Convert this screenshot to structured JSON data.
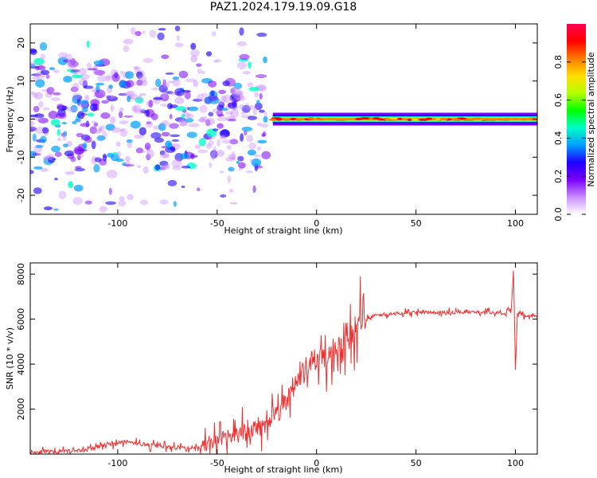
{
  "title": "PAZ1.2024.179.19.09.G18",
  "chart_data": [
    {
      "type": "heatmap",
      "xlabel": "Height of straight line (km)",
      "ylabel": "Frequency (Hz)",
      "xlim": [
        -144,
        111
      ],
      "ylim": [
        -25,
        25
      ],
      "xticks": [
        -100,
        -50,
        0,
        50,
        100
      ],
      "yticks": [
        -20,
        -10,
        0,
        10,
        20
      ],
      "colorbar": {
        "label": "Normalized spectral amplitude",
        "range": [
          0.0,
          1.0
        ],
        "ticks": [
          0.0,
          0.2,
          0.4,
          0.6,
          0.8
        ],
        "colors": [
          "#ffffff",
          "#c98cff",
          "#7a00ff",
          "#1e00ff",
          "#00a0ff",
          "#00ffc8",
          "#00ff00",
          "#b4ff00",
          "#ffdd00",
          "#ff7a00",
          "#ff0000",
          "#ff0050"
        ]
      },
      "features": {
        "scatter_region": {
          "x": [
            -144,
            -25
          ],
          "freq": [
            -25,
            25
          ],
          "amplitude": [
            0.05,
            0.45
          ]
        },
        "central_band": {
          "x": [
            -22,
            111
          ],
          "freq": 0,
          "amplitude": [
            0.45,
            0.95
          ]
        }
      }
    },
    {
      "type": "line",
      "xlabel": "Height of straight line (km)",
      "ylabel": "SNR (10 * v/v)",
      "xlim": [
        -144,
        111
      ],
      "ylim": [
        0,
        8500
      ],
      "xticks": [
        -100,
        -50,
        0,
        50,
        100
      ],
      "yticks": [
        2000,
        4000,
        6000,
        8000
      ],
      "series": [
        {
          "color": "#f03030",
          "x": [
            -144,
            -130,
            -115,
            -105,
            -95,
            -85,
            -75,
            -65,
            -55,
            -45,
            -35,
            -25,
            -20,
            -15,
            -10,
            -5,
            0,
            5,
            10,
            15,
            20,
            25,
            30,
            40,
            50,
            60,
            70,
            80,
            90,
            95,
            98,
            99,
            100,
            101,
            105,
            111
          ],
          "y": [
            100,
            100,
            200,
            450,
            550,
            400,
            300,
            250,
            400,
            700,
            1000,
            1400,
            1800,
            2500,
            3200,
            3800,
            4200,
            4500,
            4900,
            5300,
            5700,
            6000,
            6200,
            6250,
            6300,
            6300,
            6300,
            6320,
            6300,
            6200,
            6500,
            8200,
            3800,
            6300,
            6150,
            6100
          ]
        }
      ]
    }
  ]
}
